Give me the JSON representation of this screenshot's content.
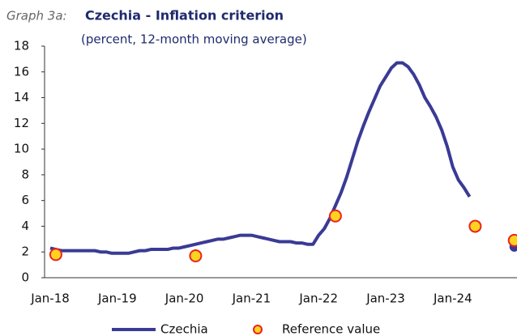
{
  "chart_data": {
    "type": "line",
    "label": "Graph 3a:",
    "title": "Czechia - Inflation criterion",
    "subtitle": "(percent, 12-month moving average)",
    "categories": [
      "Jan-18",
      null,
      null,
      null,
      null,
      null,
      null,
      null,
      null,
      null,
      null,
      null,
      "Jan-19",
      null,
      null,
      null,
      null,
      null,
      null,
      null,
      null,
      null,
      null,
      null,
      "Jan-20",
      null,
      null,
      null,
      null,
      null,
      null,
      null,
      null,
      null,
      null,
      null,
      "Jan-21",
      null,
      null,
      null,
      null,
      null,
      null,
      null,
      null,
      null,
      null,
      null,
      "Jan-22",
      null,
      null,
      null,
      null,
      null,
      null,
      null,
      null,
      null,
      null,
      null,
      "Jan-23",
      null,
      null,
      null,
      null,
      null,
      null,
      null,
      null,
      null,
      null,
      null,
      "Jan-24",
      null,
      null,
      null,
      null,
      null,
      null,
      null,
      null,
      null,
      null,
      null
    ],
    "series": [
      {
        "name": "Czechia",
        "color": "#3a3a96",
        "values": [
          2.3,
          2.2,
          2.1,
          2.1,
          2.1,
          2.1,
          2.1,
          2.1,
          2.1,
          2.0,
          2.0,
          1.9,
          1.9,
          1.9,
          1.9,
          2.0,
          2.1,
          2.1,
          2.2,
          2.2,
          2.2,
          2.2,
          2.3,
          2.3,
          2.4,
          2.5,
          2.6,
          2.7,
          2.8,
          2.9,
          3.0,
          3.0,
          3.1,
          3.2,
          3.3,
          3.3,
          3.3,
          3.2,
          3.1,
          3.0,
          2.9,
          2.8,
          2.8,
          2.8,
          2.7,
          2.7,
          2.6,
          2.6,
          3.3,
          3.8,
          4.6,
          5.6,
          6.6,
          7.8,
          9.2,
          10.6,
          11.8,
          12.9,
          13.9,
          14.9,
          15.6,
          16.3,
          16.7,
          16.7,
          16.4,
          15.8,
          15.0,
          14.0,
          13.3,
          12.5,
          11.5,
          10.2,
          8.6,
          7.6,
          7.0,
          6.3,
          null,
          null,
          null,
          null,
          null,
          null,
          null,
          2.4
        ]
      },
      {
        "name": "Reference value",
        "color": "#ffd21f",
        "edge": "#e8251f",
        "marker": true,
        "values": [
          null,
          1.8,
          null,
          null,
          null,
          null,
          null,
          null,
          null,
          null,
          null,
          null,
          null,
          null,
          null,
          null,
          null,
          null,
          null,
          null,
          null,
          null,
          null,
          null,
          null,
          null,
          1.7,
          null,
          null,
          null,
          null,
          null,
          null,
          null,
          null,
          null,
          null,
          null,
          null,
          null,
          null,
          null,
          null,
          null,
          null,
          null,
          null,
          null,
          null,
          null,
          null,
          4.8,
          null,
          null,
          null,
          null,
          null,
          null,
          null,
          null,
          null,
          null,
          null,
          null,
          null,
          null,
          null,
          null,
          null,
          null,
          null,
          null,
          null,
          null,
          null,
          null,
          4.0,
          null,
          null,
          null,
          null,
          null,
          null,
          2.9
        ]
      }
    ],
    "ylim": [
      0,
      18
    ],
    "yticks": [
      0,
      2,
      4,
      6,
      8,
      10,
      12,
      14,
      16,
      18
    ]
  }
}
